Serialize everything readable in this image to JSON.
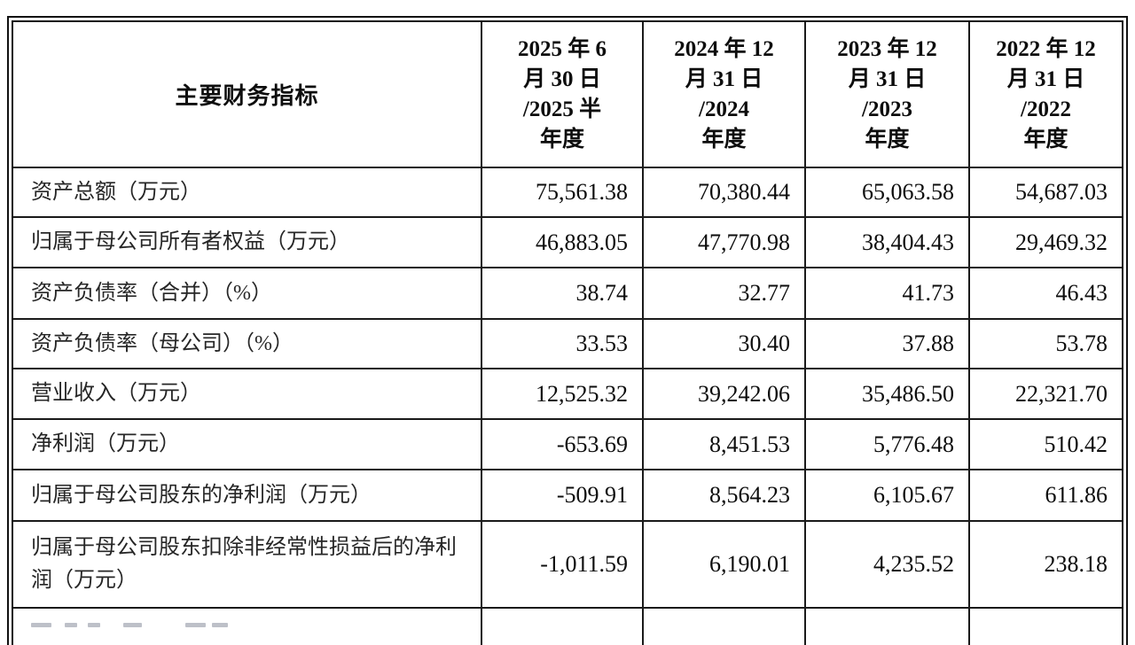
{
  "table": {
    "header": {
      "indicator_label": "主要财务指标",
      "periods": [
        "2025 年 6\n月 30 日\n/2025 半\n年度",
        "2024 年 12\n月 31 日\n/2024\n年度",
        "2023 年 12\n月 31 日\n/2023\n年度",
        "2022 年 12\n月 31 日\n/2022\n年度"
      ]
    },
    "rows": [
      {
        "label": "资产总额（万元）",
        "values": [
          "75,561.38",
          "70,380.44",
          "65,063.58",
          "54,687.03"
        ]
      },
      {
        "label": "归属于母公司所有者权益（万元）",
        "values": [
          "46,883.05",
          "47,770.98",
          "38,404.43",
          "29,469.32"
        ]
      },
      {
        "label": "资产负债率（合并）（%）",
        "values": [
          "38.74",
          "32.77",
          "41.73",
          "46.43"
        ]
      },
      {
        "label": "资产负债率（母公司）（%）",
        "values": [
          "33.53",
          "30.40",
          "37.88",
          "53.78"
        ]
      },
      {
        "label": "营业收入（万元）",
        "values": [
          "12,525.32",
          "39,242.06",
          "35,486.50",
          "22,321.70"
        ]
      },
      {
        "label": "净利润（万元）",
        "values": [
          "-653.69",
          "8,451.53",
          "5,776.48",
          "510.42"
        ]
      },
      {
        "label": "归属于母公司股东的净利润（万元）",
        "values": [
          "-509.91",
          "8,564.23",
          "6,105.67",
          "611.86"
        ]
      },
      {
        "label": "归属于母公司股东扣除非经常性损益后的净利润（万元）",
        "values": [
          "-1,011.59",
          "6,190.01",
          "4,235.52",
          "238.18"
        ]
      }
    ]
  }
}
